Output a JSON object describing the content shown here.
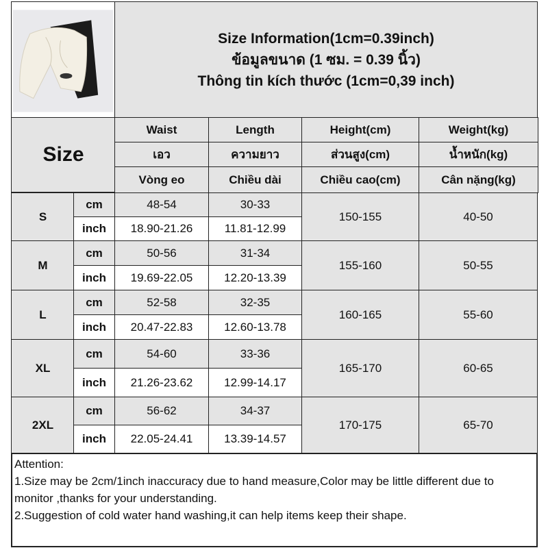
{
  "header": {
    "title_lines": [
      "Size Information(1cm=0.39inch)",
      "ข้อมูลขนาด (1 ซม. = 0.39 นิ้ว)",
      "Thông tin kích thước (1cm=0,39 inch)"
    ]
  },
  "product_image": {
    "description_icon": "white-shorts-photo"
  },
  "table": {
    "size_label": "Size",
    "columns": [
      {
        "en": "Waist",
        "th": "เอว",
        "vi": "Vòng eo"
      },
      {
        "en": "Length",
        "th": "ความยาว",
        "vi": "Chiều dài"
      },
      {
        "en": "Height(cm)",
        "th": "ส่วนสูง(cm)",
        "vi": "Chiều cao(cm)"
      },
      {
        "en": "Weight(kg)",
        "th": "น้ำหนัก(kg)",
        "vi": "Cân nặng(kg)"
      }
    ],
    "unit_cm": "cm",
    "unit_inch": "inch",
    "rows": [
      {
        "size": "S",
        "waist_cm": "48-54",
        "length_cm": "30-33",
        "waist_inch": "18.90-21.26",
        "length_inch": "11.81-12.99",
        "height": "150-155",
        "weight": "40-50"
      },
      {
        "size": "M",
        "waist_cm": "50-56",
        "length_cm": "31-34",
        "waist_inch": "19.69-22.05",
        "length_inch": "12.20-13.39",
        "height": "155-160",
        "weight": "50-55"
      },
      {
        "size": "L",
        "waist_cm": "52-58",
        "length_cm": "32-35",
        "waist_inch": "20.47-22.83",
        "length_inch": "12.60-13.78",
        "height": "160-165",
        "weight": "55-60"
      },
      {
        "size": "XL",
        "waist_cm": "54-60",
        "length_cm": "33-36",
        "waist_inch": "21.26-23.62",
        "length_inch": "12.99-14.17",
        "height": "165-170",
        "weight": "60-65"
      },
      {
        "size": "2XL",
        "waist_cm": "56-62",
        "length_cm": "34-37",
        "waist_inch": "22.05-24.41",
        "length_inch": "13.39-14.57",
        "height": "170-175",
        "weight": "65-70"
      }
    ]
  },
  "notes": {
    "heading": "Attention:",
    "lines": [
      "1.Size may be 2cm/1inch inaccuracy due to hand measure,Color may be little different due to monitor ,thanks for your understanding.",
      "2.Suggestion of cold water hand washing,it can help items keep their shape."
    ]
  }
}
